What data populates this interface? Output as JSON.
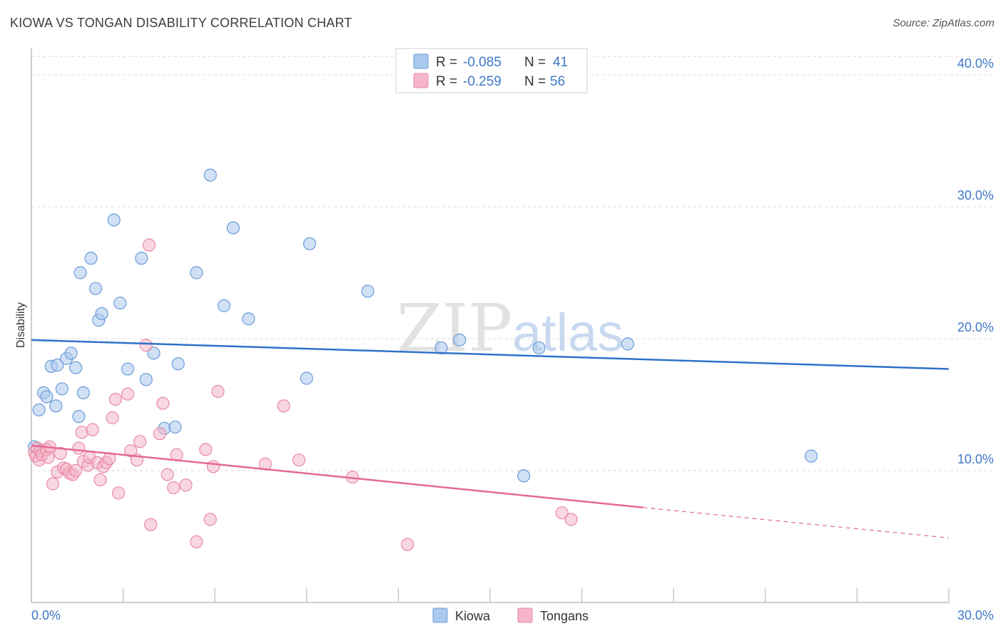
{
  "header": {
    "title": "KIOWA VS TONGAN DISABILITY CORRELATION CHART",
    "source": "Source: ZipAtlas.com"
  },
  "watermark": {
    "part1": "ZIP",
    "part2": "atlas"
  },
  "legend": {
    "r_label": "R =",
    "n_label": "N =",
    "rows": [
      {
        "r": "-0.085",
        "n": "41",
        "color": "#a9c8ee"
      },
      {
        "r": "-0.259",
        "n": "56",
        "color": "#f4b6c8"
      }
    ]
  },
  "bottom_legend": [
    {
      "label": "Kiowa",
      "color": "#a9c8ee"
    },
    {
      "label": "Tongans",
      "color": "#f4b6c8"
    }
  ],
  "colors": {
    "kiowa_fill": "#a9c8ee",
    "kiowa_stroke": "#6d9cd8",
    "kiowa_line": "#2f72c8",
    "tongan_fill": "#f4b6c8",
    "tongan_stroke": "#e889a6",
    "tongan_line": "#e4689a",
    "grid": "#d8d8d8",
    "tick_text": "#3f78c8"
  },
  "chart_data": {
    "type": "scatter",
    "title": "KIOWA VS TONGAN DISABILITY CORRELATION CHART",
    "xlabel": "",
    "ylabel": "Disability",
    "xlim": [
      0,
      30
    ],
    "ylim": [
      0,
      42
    ],
    "x_tick_labels": [
      "0.0%",
      "30.0%"
    ],
    "y_ticks": [
      10,
      20,
      30,
      40
    ],
    "y_tick_labels": [
      "10.0%",
      "20.0%",
      "30.0%",
      "40.0%"
    ],
    "grid": "horizontal dashed",
    "series": [
      {
        "name": "Kiowa",
        "trend": {
          "x": [
            0,
            30
          ],
          "y": [
            19.9,
            17.7
          ]
        },
        "points": [
          [
            0.1,
            11.8
          ],
          [
            0.25,
            14.6
          ],
          [
            0.4,
            15.9
          ],
          [
            0.5,
            15.6
          ],
          [
            0.65,
            17.9
          ],
          [
            0.8,
            14.9
          ],
          [
            0.85,
            18.0
          ],
          [
            1.0,
            16.2
          ],
          [
            1.15,
            18.5
          ],
          [
            1.3,
            18.9
          ],
          [
            1.45,
            17.8
          ],
          [
            1.55,
            14.1
          ],
          [
            1.7,
            15.9
          ],
          [
            1.6,
            25.0
          ],
          [
            1.95,
            26.1
          ],
          [
            2.1,
            23.8
          ],
          [
            2.2,
            21.4
          ],
          [
            2.3,
            21.9
          ],
          [
            2.7,
            29.0
          ],
          [
            2.9,
            22.7
          ],
          [
            3.15,
            17.7
          ],
          [
            3.6,
            26.1
          ],
          [
            3.75,
            16.9
          ],
          [
            4.0,
            18.9
          ],
          [
            4.35,
            13.2
          ],
          [
            4.7,
            13.3
          ],
          [
            4.8,
            18.1
          ],
          [
            5.4,
            25.0
          ],
          [
            5.85,
            32.4
          ],
          [
            6.3,
            22.5
          ],
          [
            6.6,
            28.4
          ],
          [
            7.1,
            21.5
          ],
          [
            9.0,
            17.0
          ],
          [
            9.1,
            27.2
          ],
          [
            11.0,
            23.6
          ],
          [
            13.4,
            19.3
          ],
          [
            14.0,
            19.9
          ],
          [
            16.1,
            9.6
          ],
          [
            16.6,
            19.3
          ],
          [
            19.5,
            19.6
          ],
          [
            25.5,
            11.1
          ]
        ]
      },
      {
        "name": "Tongans",
        "trend": {
          "x": [
            0,
            20
          ],
          "y": [
            11.9,
            7.2
          ]
        },
        "trend_dashed": {
          "x": [
            20,
            30
          ],
          "y": [
            7.2,
            4.9
          ]
        },
        "points": [
          [
            0.1,
            11.4
          ],
          [
            0.15,
            11.1
          ],
          [
            0.2,
            11.7
          ],
          [
            0.25,
            10.8
          ],
          [
            0.3,
            11.5
          ],
          [
            0.35,
            11.2
          ],
          [
            0.5,
            11.6
          ],
          [
            0.55,
            11.0
          ],
          [
            0.6,
            11.8
          ],
          [
            0.7,
            9.0
          ],
          [
            0.85,
            9.9
          ],
          [
            0.95,
            11.3
          ],
          [
            1.05,
            10.2
          ],
          [
            1.15,
            10.1
          ],
          [
            1.25,
            9.8
          ],
          [
            1.35,
            9.7
          ],
          [
            1.45,
            10.0
          ],
          [
            1.55,
            11.7
          ],
          [
            1.65,
            12.9
          ],
          [
            1.7,
            10.7
          ],
          [
            1.85,
            10.4
          ],
          [
            1.9,
            11.0
          ],
          [
            2.0,
            13.1
          ],
          [
            2.15,
            10.6
          ],
          [
            2.25,
            9.3
          ],
          [
            2.35,
            10.3
          ],
          [
            2.45,
            10.6
          ],
          [
            2.55,
            10.9
          ],
          [
            2.65,
            14.0
          ],
          [
            2.75,
            15.4
          ],
          [
            2.85,
            8.3
          ],
          [
            3.15,
            15.8
          ],
          [
            3.25,
            11.5
          ],
          [
            3.45,
            10.8
          ],
          [
            3.55,
            12.2
          ],
          [
            3.75,
            19.5
          ],
          [
            3.85,
            27.1
          ],
          [
            3.9,
            5.9
          ],
          [
            4.2,
            12.8
          ],
          [
            4.3,
            15.1
          ],
          [
            4.45,
            9.7
          ],
          [
            4.65,
            8.7
          ],
          [
            4.75,
            11.2
          ],
          [
            5.05,
            8.9
          ],
          [
            5.4,
            4.6
          ],
          [
            5.7,
            11.6
          ],
          [
            5.85,
            6.3
          ],
          [
            5.95,
            10.3
          ],
          [
            6.1,
            16.0
          ],
          [
            7.65,
            10.5
          ],
          [
            8.25,
            14.9
          ],
          [
            8.75,
            10.8
          ],
          [
            10.5,
            9.5
          ],
          [
            12.3,
            4.4
          ],
          [
            17.35,
            6.8
          ],
          [
            17.65,
            6.3
          ]
        ]
      }
    ]
  }
}
